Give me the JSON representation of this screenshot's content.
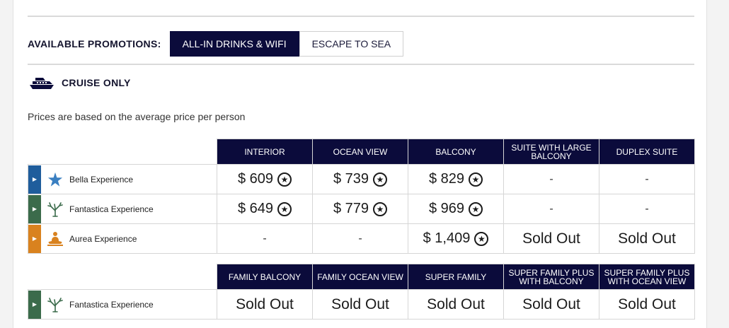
{
  "promotions": {
    "label": "AVAILABLE PROMOTIONS:",
    "options": [
      {
        "label": "ALL-IN DRINKS & WIFI",
        "active": true
      },
      {
        "label": "ESCAPE TO SEA",
        "active": false
      }
    ]
  },
  "cruise_only_label": "CRUISE ONLY",
  "price_note": "Prices are based on the average price per person",
  "table1": {
    "columns": [
      "INTERIOR",
      "OCEAN VIEW",
      "BALCONY",
      "SUITE WITH LARGE BALCONY",
      "DUPLEX SUITE"
    ],
    "rows": [
      {
        "name": "Bella Experience",
        "tag_color": "#1f5d9c",
        "icon": "starfish-icon",
        "cells": [
          {
            "t": "price",
            "v": "$ 609"
          },
          {
            "t": "price",
            "v": "$ 739"
          },
          {
            "t": "price",
            "v": "$ 829"
          },
          {
            "t": "dash",
            "v": "-"
          },
          {
            "t": "dash",
            "v": "-"
          }
        ]
      },
      {
        "name": "Fantastica Experience",
        "tag_color": "#3b6b4b",
        "icon": "coral-icon",
        "cells": [
          {
            "t": "price",
            "v": "$ 649"
          },
          {
            "t": "price",
            "v": "$ 779"
          },
          {
            "t": "price",
            "v": "$ 969"
          },
          {
            "t": "dash",
            "v": "-"
          },
          {
            "t": "dash",
            "v": "-"
          }
        ]
      },
      {
        "name": "Aurea Experience",
        "tag_color": "#d9821f",
        "icon": "meditation-icon",
        "cells": [
          {
            "t": "dash",
            "v": "-"
          },
          {
            "t": "dash",
            "v": "-"
          },
          {
            "t": "price",
            "v": "$ 1,409"
          },
          {
            "t": "sold",
            "v": "Sold Out"
          },
          {
            "t": "sold",
            "v": "Sold Out"
          }
        ]
      }
    ]
  },
  "table2": {
    "columns": [
      "FAMILY BALCONY",
      "FAMILY OCEAN VIEW",
      "SUPER FAMILY",
      "SUPER FAMILY PLUS WITH BALCONY",
      "SUPER FAMILY PLUS WITH OCEAN VIEW"
    ],
    "rows": [
      {
        "name": "Fantastica Experience",
        "tag_color": "#3b6b4b",
        "icon": "coral-icon",
        "cells": [
          {
            "t": "sold",
            "v": "Sold Out"
          },
          {
            "t": "sold",
            "v": "Sold Out"
          },
          {
            "t": "sold",
            "v": "Sold Out"
          },
          {
            "t": "sold",
            "v": "Sold Out"
          },
          {
            "t": "sold",
            "v": "Sold Out"
          }
        ]
      }
    ]
  }
}
